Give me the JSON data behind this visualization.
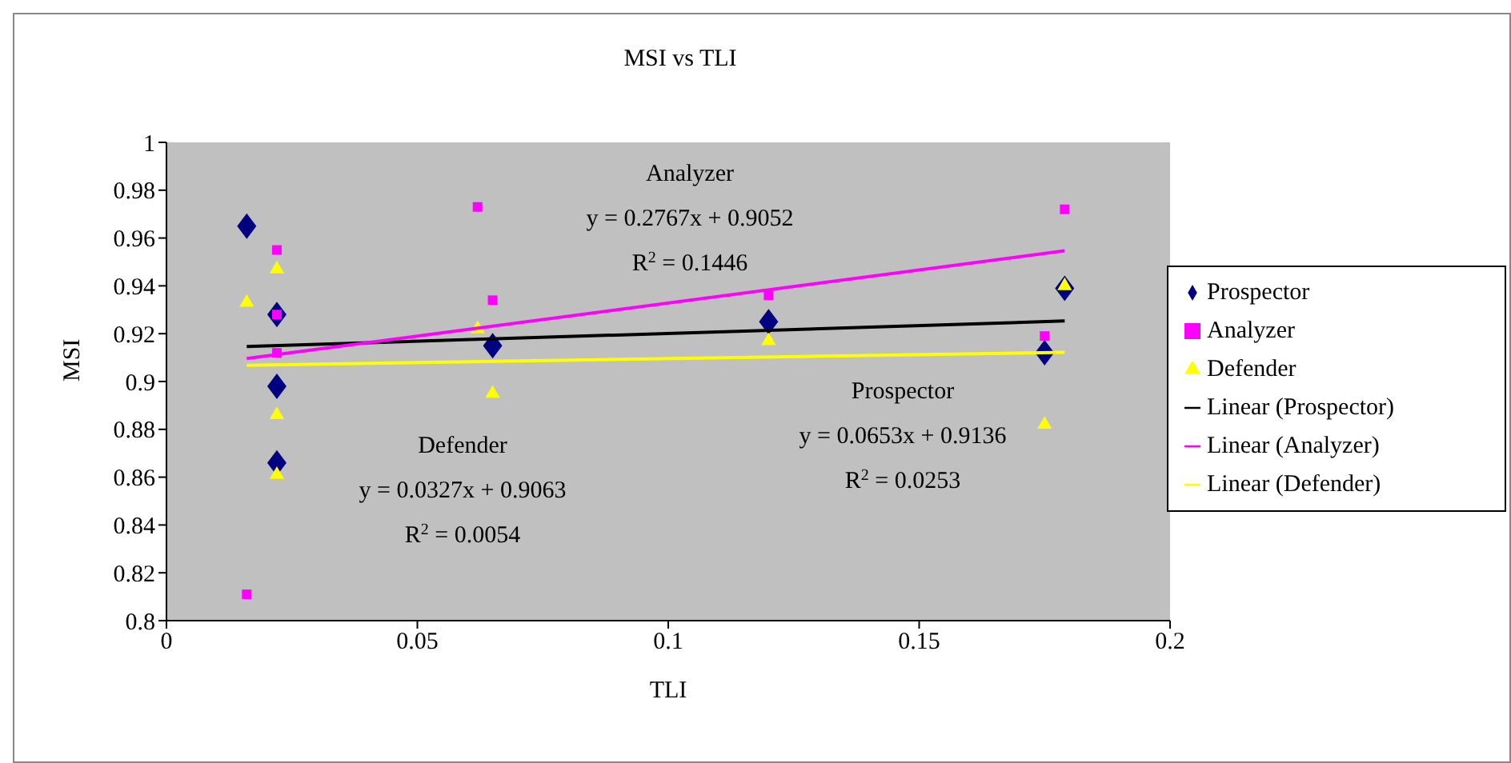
{
  "chart_data": {
    "type": "scatter",
    "title": "MSI vs TLI",
    "xlabel": "TLI",
    "ylabel": "MSI",
    "xlim": [
      0,
      0.2
    ],
    "xticks": [
      0,
      0.05,
      0.1,
      0.15,
      0.2
    ],
    "ylim": [
      0.8,
      1
    ],
    "yticks": [
      0.8,
      0.82,
      0.84,
      0.86,
      0.88,
      0.9,
      0.92,
      0.94,
      0.96,
      0.98,
      1
    ],
    "grid": false,
    "legend": "right",
    "series": [
      {
        "name": "Prospector",
        "color": "#000080",
        "marker": "diamond",
        "x": [
          0.016,
          0.022,
          0.022,
          0.022,
          0.065,
          0.12,
          0.175,
          0.179
        ],
        "values": [
          0.965,
          0.928,
          0.898,
          0.866,
          0.915,
          0.925,
          0.912,
          0.939
        ]
      },
      {
        "name": "Analyzer",
        "color": "#ff00ff",
        "marker": "square",
        "x": [
          0.016,
          0.022,
          0.022,
          0.022,
          0.062,
          0.065,
          0.12,
          0.175,
          0.179
        ],
        "values": [
          0.811,
          0.955,
          0.928,
          0.912,
          0.973,
          0.934,
          0.936,
          0.919,
          0.972
        ]
      },
      {
        "name": "Defender",
        "color": "#ffff00",
        "marker": "triangle",
        "x": [
          0.016,
          0.022,
          0.022,
          0.022,
          0.062,
          0.065,
          0.12,
          0.175,
          0.179
        ],
        "values": [
          0.933,
          0.947,
          0.886,
          0.861,
          0.922,
          0.895,
          0.917,
          0.882,
          0.94
        ]
      },
      {
        "name": "Linear (Prospector)",
        "type": "line",
        "color": "#000000",
        "marker": "none",
        "x": [
          0.016,
          0.179
        ],
        "values": [
          0.9146,
          0.9253
        ]
      },
      {
        "name": "Linear (Analyzer)",
        "type": "line",
        "color": "#ff00ff",
        "marker": "none",
        "x": [
          0.016,
          0.179
        ],
        "values": [
          0.9096,
          0.9547
        ]
      },
      {
        "name": "Linear (Defender)",
        "type": "line",
        "color": "#ffff00",
        "marker": "none",
        "x": [
          0.016,
          0.179
        ],
        "values": [
          0.9068,
          0.9122
        ]
      }
    ],
    "annotations": [
      "Analyzer",
      "y = 0.2767x + 0.9052",
      "R$^{2}$ = 0.1446",
      "Defender",
      "y = 0.0327x + 0.9063",
      "R$^{2}$ = 0.0054",
      "Prospector",
      "y = 0.0653x + 0.9136",
      "R$^{2}$ = 0.0253"
    ]
  }
}
